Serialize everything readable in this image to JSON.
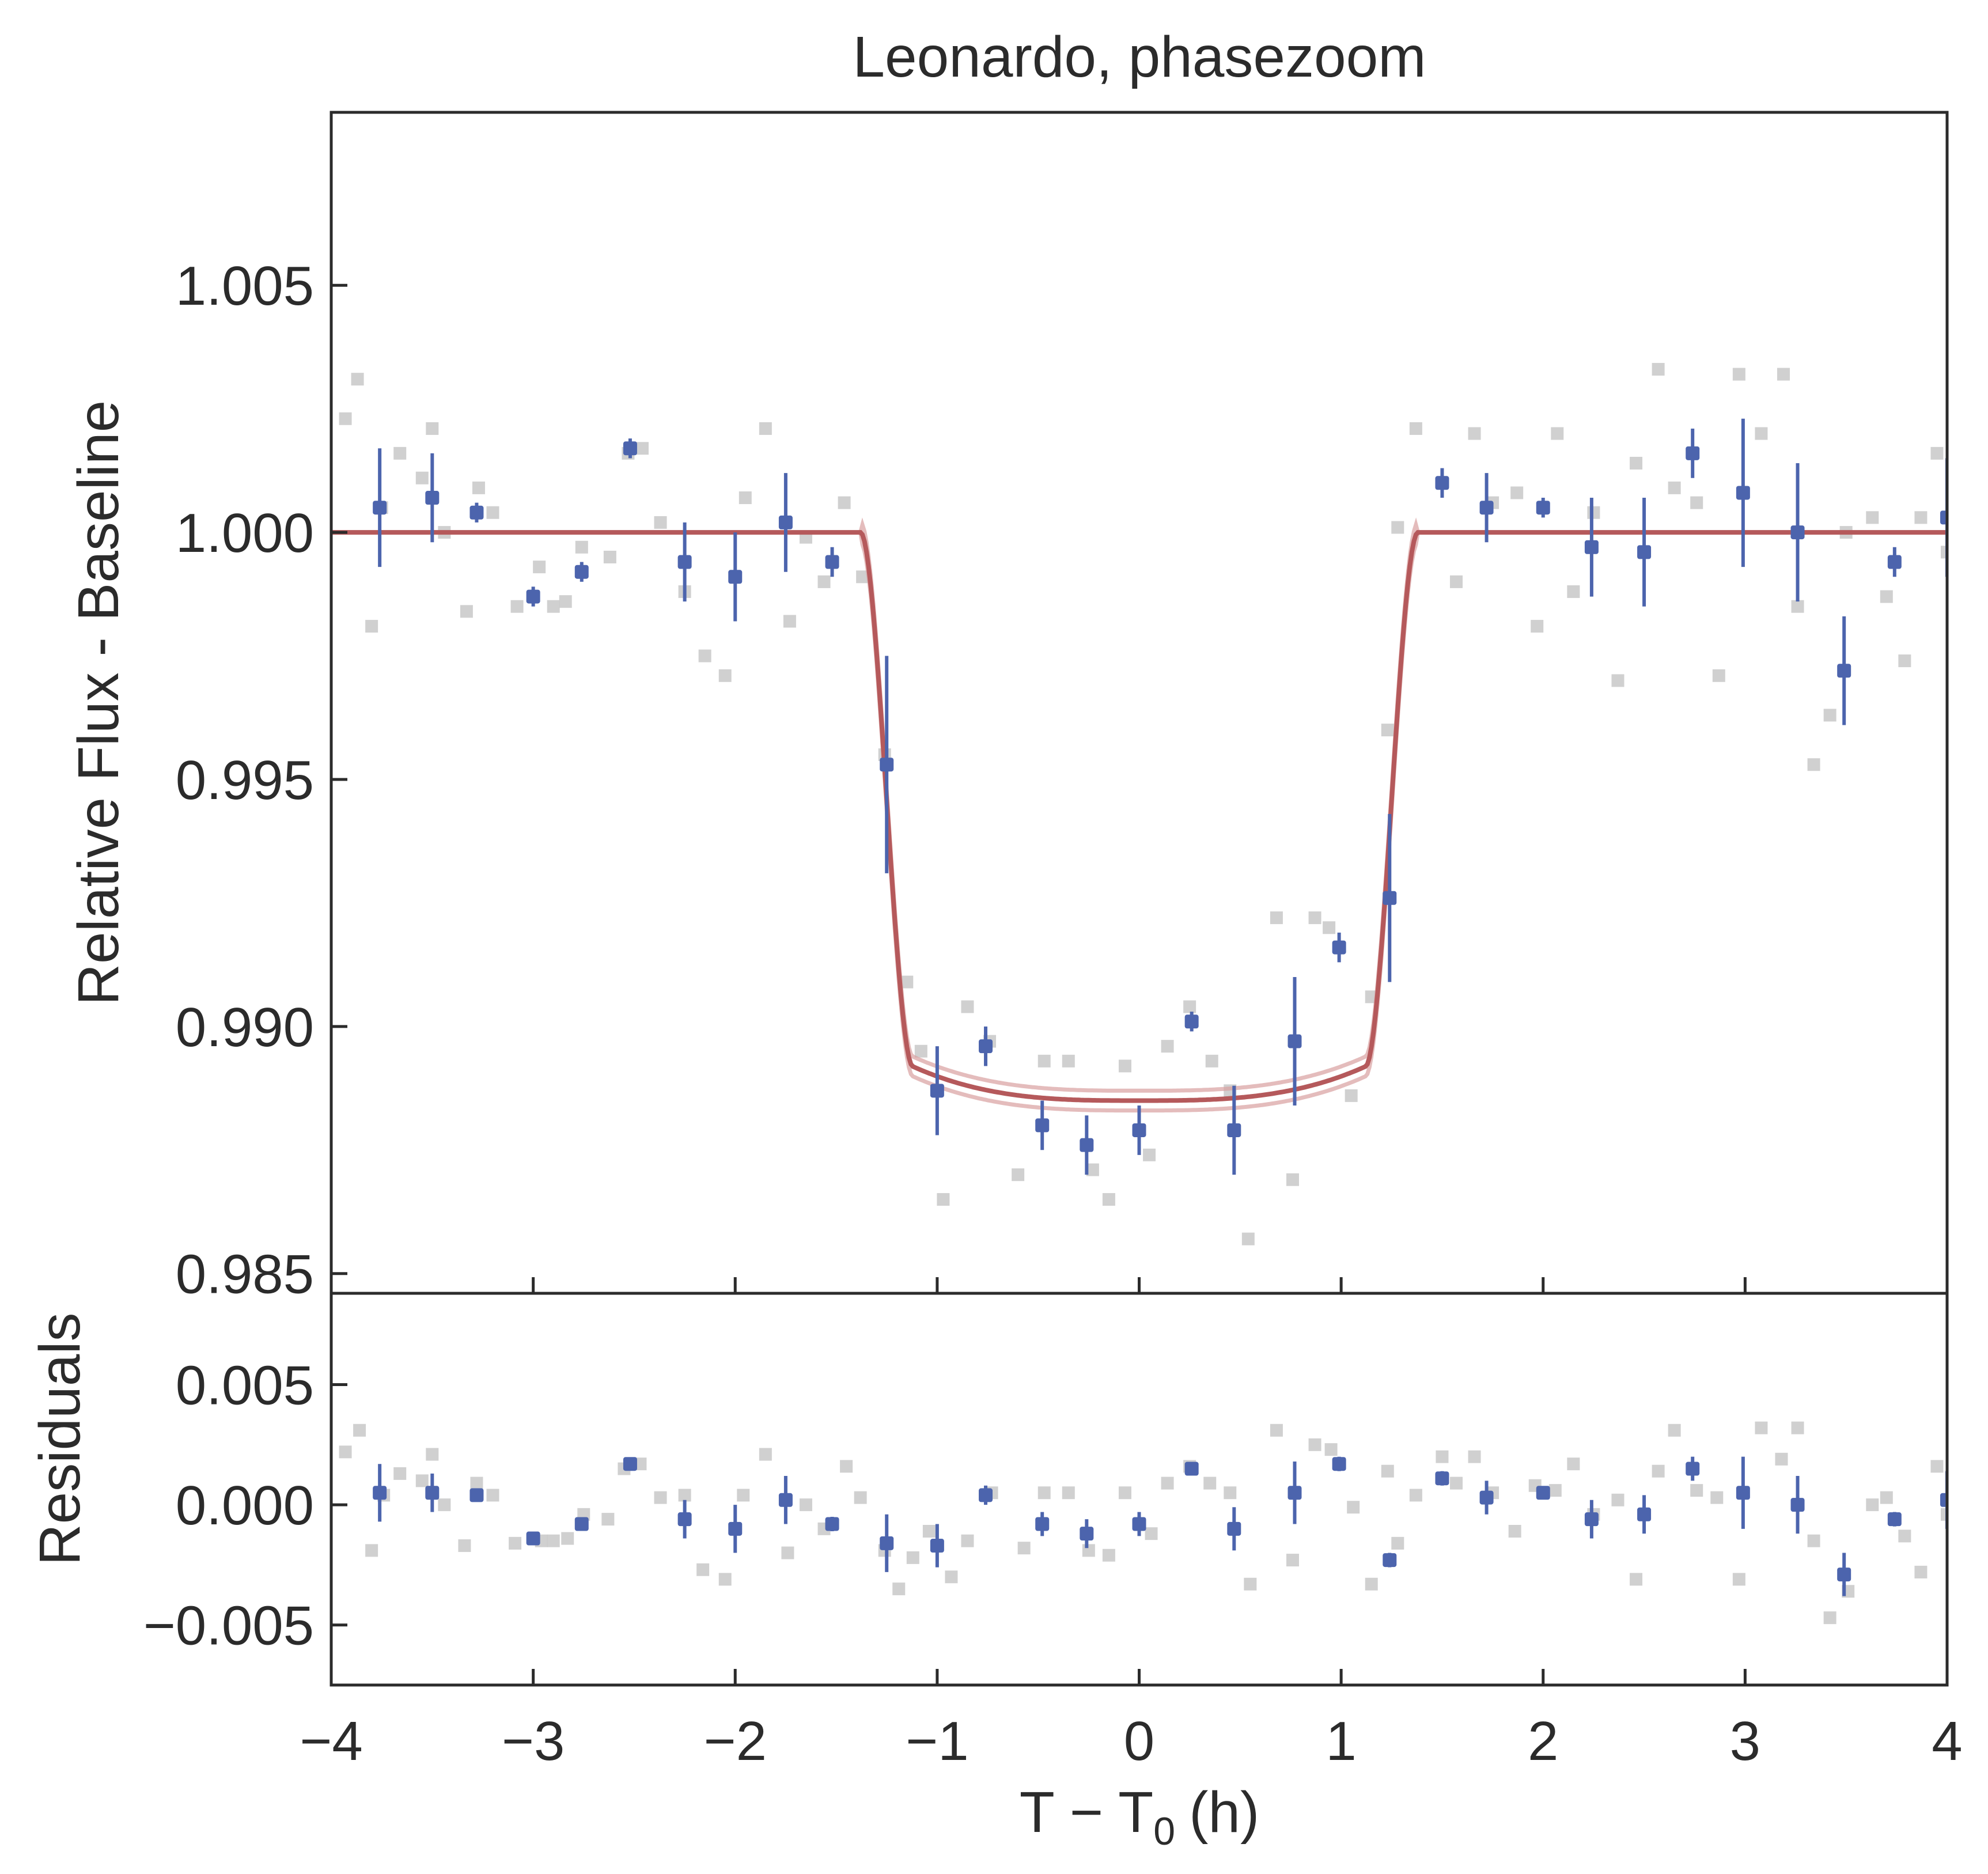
{
  "chart_data": {
    "type": "scatter",
    "title": "Leonardo, phasezoom",
    "xlabel": "T − T",
    "xlabel_sub": "0",
    "xlabel_unit": "(h)",
    "xlim": [
      -4,
      4
    ],
    "x_ticks": [
      -4,
      -3,
      -2,
      -1,
      0,
      1,
      2,
      3,
      4
    ],
    "x_tick_labels": [
      "−4",
      "−3",
      "−2",
      "−1",
      "0",
      "1",
      "2",
      "3",
      "4"
    ],
    "grid": false,
    "colors": {
      "binned": "#4c64ad",
      "raw": "#c8c8c8",
      "model": "#b5595b",
      "model_band": "#d9a0a0",
      "axes": "#2b2b2b"
    },
    "panels": [
      {
        "name": "flux",
        "ylabel": "Relative Flux - Baseline",
        "ylim": [
          0.9846,
          1.0085
        ],
        "y_ticks": [
          0.985,
          0.99,
          0.995,
          1.0,
          1.005
        ],
        "y_tick_labels": [
          "0.985",
          "0.990",
          "0.995",
          "1.000",
          "1.005"
        ],
        "raw_points": {
          "x": [
            -3.93,
            -3.87,
            -3.8,
            -3.75,
            -3.66,
            -3.55,
            -3.5,
            -3.44,
            -3.33,
            -3.27,
            -3.2,
            -3.08,
            -2.97,
            -2.9,
            -2.84,
            -2.76,
            -2.62,
            -2.53,
            -2.46,
            -2.37,
            -2.25,
            -2.15,
            -2.05,
            -1.95,
            -1.85,
            -1.73,
            -1.65,
            -1.56,
            -1.46,
            -1.37,
            -1.26,
            -1.15,
            -1.08,
            -0.97,
            -0.85,
            -0.74,
            -0.6,
            -0.47,
            -0.35,
            -0.23,
            -0.15,
            -0.07,
            0.05,
            0.14,
            0.25,
            0.36,
            0.45,
            0.54,
            0.68,
            0.76,
            0.87,
            0.94,
            1.05,
            1.15,
            1.23,
            1.28,
            1.37,
            1.5,
            1.57,
            1.66,
            1.75,
            1.87,
            1.97,
            2.07,
            2.15,
            2.25,
            2.37,
            2.46,
            2.57,
            2.65,
            2.76,
            2.87,
            2.97,
            3.08,
            3.19,
            3.26,
            3.34,
            3.42,
            3.5,
            3.63,
            3.7,
            3.79,
            3.87,
            3.95,
            4.0
          ],
          "y": [
            1.0023,
            1.0031,
            0.9981,
            1.0005,
            1.0016,
            1.0011,
            1.0021,
            1.0,
            0.9984,
            1.0009,
            1.0004,
            0.9985,
            0.9993,
            0.9985,
            0.9986,
            0.9997,
            0.9995,
            1.0016,
            1.0017,
            1.0002,
            0.9988,
            0.9975,
            0.9971,
            1.0007,
            1.0021,
            0.9982,
            0.9999,
            0.999,
            1.0006,
            0.9991,
            0.9955,
            0.9909,
            0.9895,
            0.9865,
            0.9904,
            0.9897,
            0.987,
            0.9893,
            0.9893,
            0.9871,
            0.9865,
            0.9892,
            0.9874,
            0.9896,
            0.9904,
            0.9893,
            0.9887,
            0.9857,
            0.9922,
            0.9869,
            0.9922,
            0.992,
            0.9886,
            0.9906,
            0.996,
            1.0001,
            1.0021,
            1.001,
            0.999,
            1.002,
            1.0006,
            1.0008,
            0.9981,
            1.002,
            0.9988,
            1.0004,
            0.997,
            1.0014,
            1.0033,
            1.0009,
            1.0006,
            0.9971,
            1.0032,
            1.002,
            1.0032,
            0.9985,
            0.9953,
            0.9963,
            1.0,
            1.0003,
            0.9987,
            0.9974,
            1.0003,
            1.0016,
            0.9996
          ]
        },
        "binned_points": {
          "x": [
            -3.76,
            -3.5,
            -3.28,
            -3.0,
            -2.76,
            -2.52,
            -2.25,
            -2.0,
            -1.75,
            -1.52,
            -1.25,
            -1.0,
            -0.76,
            -0.48,
            -0.26,
            0.0,
            0.26,
            0.47,
            0.77,
            0.99,
            1.24,
            1.5,
            1.72,
            2.0,
            2.24,
            2.5,
            2.74,
            2.99,
            3.26,
            3.49,
            3.74,
            4.0
          ],
          "y": [
            1.0005,
            1.0007,
            1.0004,
            0.9987,
            0.9992,
            1.0017,
            0.9994,
            0.9991,
            1.0002,
            0.9994,
            0.9953,
            0.9887,
            0.9896,
            0.988,
            0.9876,
            0.9879,
            0.9901,
            0.9879,
            0.9897,
            0.9916,
            0.9926,
            1.001,
            1.0005,
            1.0005,
            0.9997,
            0.9996,
            1.0016,
            1.0008,
            1.0,
            0.9972,
            0.9994,
            1.0003
          ],
          "yerr": [
            0.0012,
            0.0009,
            0.0002,
            0.0002,
            0.0002,
            0.0002,
            0.0008,
            0.0009,
            0.001,
            0.0003,
            0.0022,
            0.0009,
            0.0004,
            0.0005,
            0.0006,
            0.0005,
            0.0002,
            0.0009,
            0.0013,
            0.0003,
            0.0017,
            0.0003,
            0.0007,
            0.0002,
            0.001,
            0.0011,
            0.0005,
            0.0015,
            0.0014,
            0.0011,
            0.0003,
            0.0012
          ]
        },
        "model": {
          "baseline": 1.0,
          "depth": 0.0115,
          "t_ingress_start": -1.38,
          "t_ingress_end": -1.12,
          "t_egress_start": 1.12,
          "t_egress_end": 1.38,
          "band_halfwidth": 0.0002
        }
      },
      {
        "name": "residuals",
        "ylabel": "Residuals",
        "ylim": [
          -0.0075,
          0.0088
        ],
        "y_ticks": [
          -0.005,
          0.0,
          0.005
        ],
        "y_tick_labels": [
          "−0.005",
          "0.000",
          "0.005"
        ],
        "raw_points": {
          "x": [
            -3.93,
            -3.86,
            -3.8,
            -3.74,
            -3.66,
            -3.55,
            -3.5,
            -3.44,
            -3.34,
            -3.28,
            -3.2,
            -3.09,
            -2.96,
            -2.9,
            -2.83,
            -2.75,
            -2.63,
            -2.55,
            -2.47,
            -2.37,
            -2.25,
            -2.16,
            -2.05,
            -1.96,
            -1.85,
            -1.74,
            -1.65,
            -1.56,
            -1.45,
            -1.38,
            -1.26,
            -1.19,
            -1.12,
            -1.04,
            -0.93,
            -0.85,
            -0.73,
            -0.57,
            -0.47,
            -0.35,
            -0.25,
            -0.15,
            -0.07,
            0.06,
            0.14,
            0.25,
            0.35,
            0.45,
            0.55,
            0.68,
            0.76,
            0.87,
            0.95,
            1.06,
            1.15,
            1.23,
            1.28,
            1.37,
            1.5,
            1.57,
            1.66,
            1.75,
            1.86,
            1.96,
            2.06,
            2.15,
            2.25,
            2.37,
            2.46,
            2.57,
            2.65,
            2.76,
            2.86,
            2.97,
            3.08,
            3.18,
            3.26,
            3.34,
            3.42,
            3.51,
            3.63,
            3.7,
            3.79,
            3.87,
            3.95,
            4.0
          ],
          "y": [
            0.0022,
            0.0031,
            -0.0019,
            0.0004,
            0.0013,
            0.001,
            0.0021,
            0.0,
            -0.0017,
            0.0009,
            0.0004,
            -0.0016,
            -0.0015,
            -0.0015,
            -0.0014,
            -0.0004,
            -0.0006,
            0.0015,
            0.0017,
            0.0003,
            0.0004,
            -0.0027,
            -0.0031,
            0.0004,
            0.0021,
            -0.002,
            0.0,
            -0.001,
            0.0016,
            0.0003,
            -0.0019,
            -0.0035,
            -0.0022,
            -0.0011,
            -0.003,
            -0.0015,
            0.0005,
            -0.0018,
            0.0005,
            0.0005,
            -0.0019,
            -0.0021,
            0.0005,
            -0.0012,
            0.0009,
            0.0016,
            0.0009,
            0.0005,
            -0.0033,
            0.0031,
            -0.0023,
            0.0025,
            0.0023,
            -0.0001,
            -0.0033,
            0.0014,
            -0.0016,
            0.0004,
            0.002,
            0.0009,
            0.002,
            0.0005,
            -0.0011,
            0.0008,
            0.0006,
            0.0017,
            -0.0004,
            0.0002,
            -0.0031,
            0.0014,
            0.0031,
            0.0006,
            0.0003,
            -0.0031,
            0.0032,
            0.0019,
            0.0032,
            -0.0015,
            -0.0047,
            -0.0036,
            0.0,
            0.0003,
            -0.0013,
            -0.0028,
            0.0016,
            -0.0004
          ]
        },
        "binned_points": {
          "x": [
            -3.76,
            -3.5,
            -3.28,
            -3.0,
            -2.76,
            -2.52,
            -2.25,
            -2.0,
            -1.75,
            -1.52,
            -1.25,
            -1.0,
            -0.76,
            -0.48,
            -0.26,
            0.0,
            0.26,
            0.47,
            0.77,
            0.99,
            1.24,
            1.5,
            1.72,
            2.0,
            2.24,
            2.5,
            2.74,
            2.99,
            3.26,
            3.49,
            3.74,
            4.0
          ],
          "y": [
            0.0005,
            0.0005,
            0.0004,
            -0.0014,
            -0.0008,
            0.0017,
            -0.0006,
            -0.001,
            0.0002,
            -0.0008,
            -0.0016,
            -0.0017,
            0.0004,
            -0.0008,
            -0.0012,
            -0.0008,
            0.0015,
            -0.001,
            0.0005,
            0.0017,
            -0.0023,
            0.0011,
            0.0003,
            0.0005,
            -0.0006,
            -0.0004,
            0.0015,
            0.0005,
            0.0,
            -0.0029,
            -0.0006,
            0.0002
          ],
          "yerr": [
            0.0012,
            0.0008,
            0.0002,
            0.0002,
            0.0002,
            0.0002,
            0.0008,
            0.001,
            0.001,
            0.0003,
            0.0012,
            0.0009,
            0.0004,
            0.0005,
            0.0006,
            0.0005,
            0.0002,
            0.0009,
            0.0013,
            0.0003,
            0.0003,
            0.0003,
            0.0007,
            0.0002,
            0.0008,
            0.0008,
            0.0005,
            0.0015,
            0.0012,
            0.0009,
            0.0003,
            0.0012
          ]
        }
      }
    ]
  }
}
